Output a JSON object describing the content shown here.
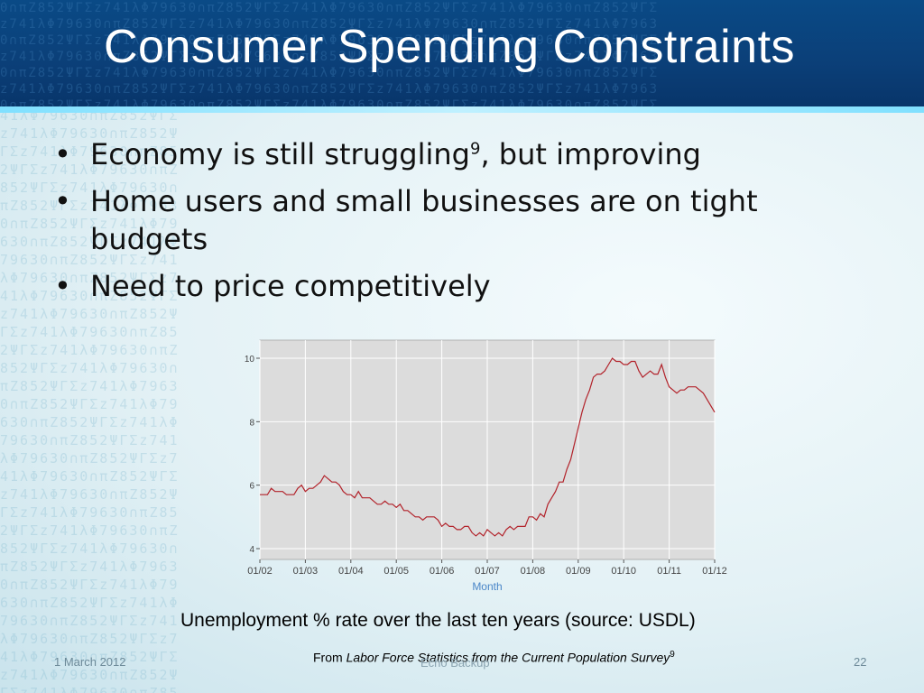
{
  "slide": {
    "title": "Consumer Spending Constraints",
    "bullets": [
      {
        "text": "Economy is still struggling",
        "sup": "9",
        "tail": ", but improving"
      },
      {
        "text": "Home users and small businesses are on tight budgets",
        "sup": "",
        "tail": ""
      },
      {
        "text": "Need to price competitively",
        "sup": "",
        "tail": ""
      }
    ],
    "caption": "Unemployment % rate over the last ten years (source: USDL)",
    "source": {
      "prefix": "From ",
      "title": "Labor Force Statistics from the Current Population Survey",
      "sup": "9"
    },
    "footer": {
      "date": "1 March 2012",
      "center": "Echo Backup",
      "page": "22"
    }
  },
  "colors": {
    "header": "#0b3f78",
    "line_series": "#b2222a",
    "plot_bg": "#dcdcdc",
    "month_label": "#4a86c8"
  },
  "chart_data": {
    "type": "line",
    "xlabel": "Month",
    "ylabel": "",
    "title": "",
    "ylim": [
      4,
      10
    ],
    "yticks": [
      4,
      6,
      8,
      10
    ],
    "xticks": [
      "01/02",
      "01/03",
      "01/04",
      "01/05",
      "01/06",
      "01/07",
      "01/08",
      "01/09",
      "01/10",
      "01/11",
      "01/12"
    ],
    "grid": true,
    "series": [
      {
        "values_by_month_from_2002_01": [
          5.7,
          5.7,
          5.7,
          5.9,
          5.8,
          5.8,
          5.8,
          5.7,
          5.7,
          5.7,
          5.9,
          6.0,
          5.8,
          5.9,
          5.9,
          6.0,
          6.1,
          6.3,
          6.2,
          6.1,
          6.1,
          6.0,
          5.8,
          5.7,
          5.7,
          5.6,
          5.8,
          5.6,
          5.6,
          5.6,
          5.5,
          5.4,
          5.4,
          5.5,
          5.4,
          5.4,
          5.3,
          5.4,
          5.2,
          5.2,
          5.1,
          5.0,
          5.0,
          4.9,
          5.0,
          5.0,
          5.0,
          4.9,
          4.7,
          4.8,
          4.7,
          4.7,
          4.6,
          4.6,
          4.7,
          4.7,
          4.5,
          4.4,
          4.5,
          4.4,
          4.6,
          4.5,
          4.4,
          4.5,
          4.4,
          4.6,
          4.7,
          4.6,
          4.7,
          4.7,
          4.7,
          5.0,
          5.0,
          4.9,
          5.1,
          5.0,
          5.4,
          5.6,
          5.8,
          6.1,
          6.1,
          6.5,
          6.8,
          7.3,
          7.8,
          8.3,
          8.7,
          9.0,
          9.4,
          9.5,
          9.5,
          9.6,
          9.8,
          10.0,
          9.9,
          9.9,
          9.8,
          9.8,
          9.9,
          9.9,
          9.6,
          9.4,
          9.5,
          9.6,
          9.5,
          9.5,
          9.8,
          9.4,
          9.1,
          9.0,
          8.9,
          9.0,
          9.0,
          9.1,
          9.1,
          9.1,
          9.0,
          8.9,
          8.7,
          8.5,
          8.3
        ]
      }
    ]
  }
}
